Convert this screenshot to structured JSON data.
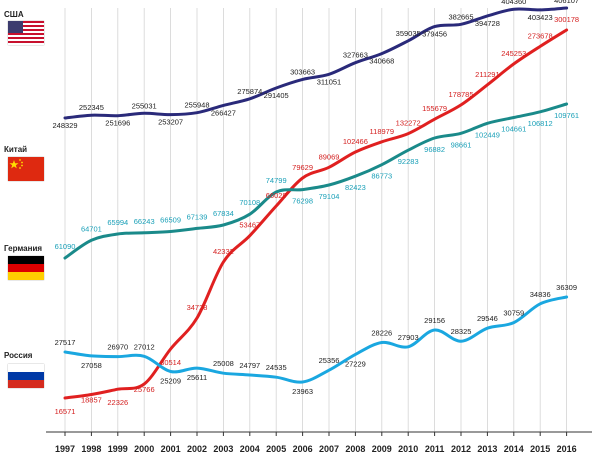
{
  "chart_data": {
    "type": "line",
    "x": [
      1997,
      1998,
      1999,
      2000,
      2001,
      2002,
      2003,
      2004,
      2005,
      2006,
      2007,
      2008,
      2009,
      2010,
      2011,
      2012,
      2013,
      2014,
      2015,
      2016
    ],
    "xlabel": "",
    "ylabel": "",
    "grid": true,
    "series": [
      {
        "name": "США",
        "color": "#2a2a7a",
        "label_color": "#222222",
        "values": [
          248329,
          252345,
          251696,
          255031,
          253207,
          255948,
          266427,
          275874,
          291405,
          303663,
          311051,
          327663,
          340668,
          359035,
          379456,
          382665,
          394728,
          404360,
          403423,
          406107
        ]
      },
      {
        "name": "Китай",
        "color": "#e02020",
        "label_color": "#d42020",
        "values": [
          16571,
          18857,
          22326,
          25766,
          30514,
          34728,
          42332,
          53467,
          66029,
          79629,
          89069,
          102466,
          118979,
          132272,
          155679,
          178785,
          211291,
          245253,
          273678,
          300178
        ]
      },
      {
        "name": "Германия",
        "color": "#1a8a8a",
        "label_color": "#1aa0b8",
        "values": [
          61090,
          64701,
          65994,
          66243,
          66509,
          67139,
          67834,
          70108,
          74799,
          76298,
          79104,
          82423,
          86773,
          92283,
          96882,
          98661,
          102449,
          104661,
          106812,
          109761
        ]
      },
      {
        "name": "Россия",
        "color": "#1aa7e0",
        "label_color": "#222222",
        "values": [
          27517,
          27058,
          26970,
          27012,
          25209,
          25611,
          25008,
          24797,
          24535,
          23963,
          25356,
          27229,
          28226,
          27903,
          29156,
          28325,
          29546,
          30759,
          34836,
          36309
        ]
      }
    ]
  },
  "flags": {
    "usa": "flag-usa-icon",
    "china": "flag-china-icon",
    "germany": "flag-germany-icon",
    "russia": "flag-russia-icon"
  }
}
